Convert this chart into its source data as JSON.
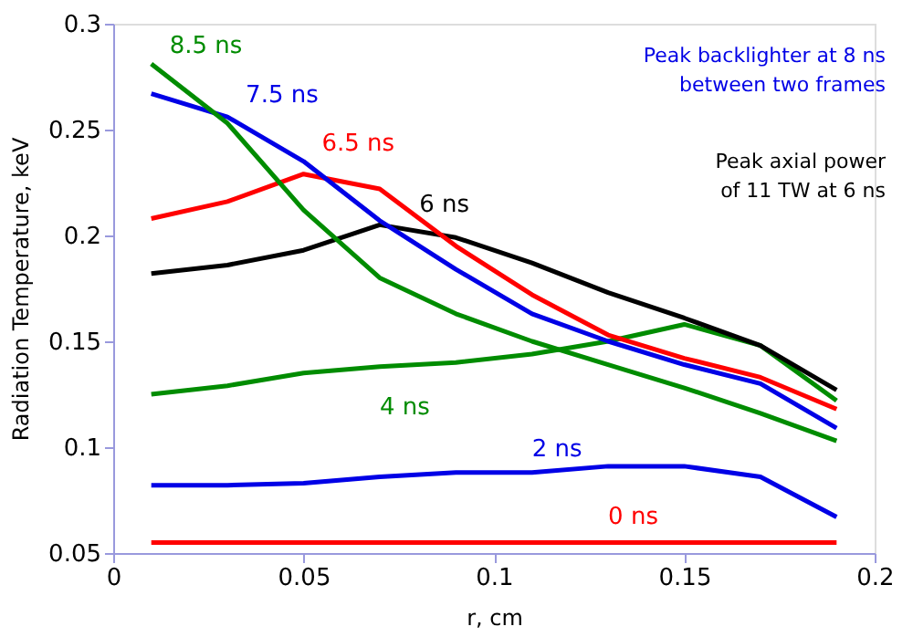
{
  "chart_data": {
    "type": "line",
    "xlabel": "r, cm",
    "ylabel": "Radiation Temperature, keV",
    "x": [
      0.01,
      0.03,
      0.05,
      0.07,
      0.09,
      0.11,
      0.13,
      0.15,
      0.17,
      0.19
    ],
    "xlim": [
      0,
      0.2
    ],
    "xticks": [
      0,
      0.05,
      0.1,
      0.15,
      0.2
    ],
    "ylim": [
      0.05,
      0.3
    ],
    "yticks": [
      0.05,
      0.1,
      0.15,
      0.2,
      0.25,
      0.3
    ],
    "grid": false,
    "marker": "none",
    "line_style": "solid",
    "series": [
      {
        "name": "0 ns",
        "color": "#ff0000",
        "values": [
          0.055,
          0.055,
          0.055,
          0.055,
          0.055,
          0.055,
          0.055,
          0.055,
          0.055,
          0.055
        ]
      },
      {
        "name": "2 ns",
        "color": "#0000e6",
        "values": [
          0.082,
          0.082,
          0.083,
          0.086,
          0.088,
          0.088,
          0.091,
          0.091,
          0.086,
          0.067
        ]
      },
      {
        "name": "4 ns",
        "color": "#008c00",
        "values": [
          0.125,
          0.129,
          0.135,
          0.138,
          0.14,
          0.144,
          0.15,
          0.158,
          0.148,
          0.122
        ]
      },
      {
        "name": "6 ns",
        "color": "#000000",
        "values": [
          0.182,
          0.186,
          0.193,
          0.205,
          0.199,
          0.187,
          0.173,
          0.161,
          0.148,
          0.127
        ]
      },
      {
        "name": "6.5 ns",
        "color": "#ff0000",
        "values": [
          0.208,
          0.216,
          0.229,
          0.222,
          0.195,
          0.172,
          0.153,
          0.142,
          0.133,
          0.118
        ]
      },
      {
        "name": "7.5 ns",
        "color": "#0000e6",
        "values": [
          0.267,
          0.256,
          0.235,
          0.207,
          0.184,
          0.163,
          0.15,
          0.139,
          0.13,
          0.109
        ]
      },
      {
        "name": "8.5 ns",
        "color": "#008c00",
        "values": [
          0.281,
          0.253,
          0.212,
          0.18,
          0.163,
          0.15,
          0.139,
          0.128,
          0.116,
          0.103
        ]
      }
    ],
    "annotations": [
      "Peak backlighter at 8 ns\nbetween two frames",
      "Peak axial power\nof 11 TW at 6 ns"
    ]
  }
}
